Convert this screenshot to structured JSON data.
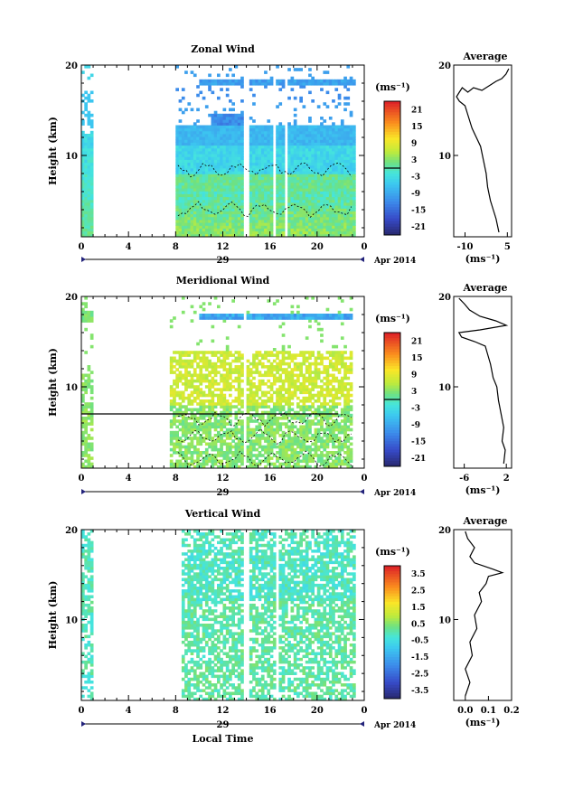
{
  "chart_data": [
    {
      "type": "heatmap",
      "title": "Zonal Wind",
      "ylabel": "Height (km)",
      "xlabel": "",
      "xlim": [
        0,
        24
      ],
      "ylim": [
        1,
        20
      ],
      "x_ticks": [
        "0",
        "4",
        "8",
        "12",
        "16",
        "20",
        "0"
      ],
      "y_ticks": [
        "10",
        "20"
      ],
      "date_label": "29",
      "date_suffix": "Apr 2014",
      "colorbar": {
        "unit": "(ms⁻¹)",
        "range": [
          -24,
          24
        ],
        "ticks": [
          "21",
          "15",
          "9",
          "3",
          "-3",
          "-9",
          "-15",
          "-21"
        ]
      },
      "profile": {
        "title": "Average",
        "xlabel": "(ms⁻¹)",
        "x_ticks": [
          "-10",
          "5"
        ],
        "y_ticks": [
          "10",
          "20"
        ],
        "xlim": [
          -14,
          6.5
        ],
        "points": [
          {
            "x": 2,
            "y": 1.5
          },
          {
            "x": 1,
            "y": 3
          },
          {
            "x": 0,
            "y": 4
          },
          {
            "x": -1,
            "y": 5
          },
          {
            "x": -2,
            "y": 6.5
          },
          {
            "x": -2.5,
            "y": 8
          },
          {
            "x": -3.5,
            "y": 9.5
          },
          {
            "x": -4.5,
            "y": 11
          },
          {
            "x": -6,
            "y": 12
          },
          {
            "x": -7.5,
            "y": 13
          },
          {
            "x": -8,
            "y": 13.5
          },
          {
            "x": -9,
            "y": 14.5
          },
          {
            "x": -10,
            "y": 15.5
          },
          {
            "x": -12,
            "y": 16
          },
          {
            "x": -13,
            "y": 16.5
          },
          {
            "x": -12,
            "y": 17
          },
          {
            "x": -11,
            "y": 17.5
          },
          {
            "x": -9,
            "y": 17
          },
          {
            "x": -7,
            "y": 17.5
          },
          {
            "x": -4,
            "y": 17.2
          },
          {
            "x": -1,
            "y": 17.8
          },
          {
            "x": 1,
            "y": 18.2
          },
          {
            "x": 3,
            "y": 18.5
          },
          {
            "x": 4.5,
            "y": 19
          },
          {
            "x": 5.5,
            "y": 19.6
          }
        ]
      }
    },
    {
      "type": "heatmap",
      "title": "Meridional Wind",
      "ylabel": "Height (km)",
      "xlabel": "",
      "xlim": [
        0,
        24
      ],
      "ylim": [
        1,
        20
      ],
      "x_ticks": [
        "0",
        "4",
        "8",
        "12",
        "16",
        "20",
        "0"
      ],
      "y_ticks": [
        "10",
        "20"
      ],
      "date_label": "29",
      "date_suffix": "Apr 2014",
      "colorbar": {
        "unit": "(ms⁻¹)",
        "range": [
          -24,
          24
        ],
        "ticks": [
          "21",
          "15",
          "9",
          "3",
          "-3",
          "-9",
          "-15",
          "-21"
        ]
      },
      "profile": {
        "title": "Average",
        "xlabel": "(ms⁻¹)",
        "x_ticks": [
          "-6",
          "2"
        ],
        "y_ticks": [
          "10",
          "20"
        ],
        "xlim": [
          -8,
          3
        ],
        "points": [
          {
            "x": 1.5,
            "y": 1.5
          },
          {
            "x": 1.8,
            "y": 3
          },
          {
            "x": 1.2,
            "y": 4
          },
          {
            "x": 1.5,
            "y": 5.5
          },
          {
            "x": 1.0,
            "y": 7
          },
          {
            "x": 0.5,
            "y": 8.5
          },
          {
            "x": 0.2,
            "y": 10
          },
          {
            "x": -0.5,
            "y": 11
          },
          {
            "x": -1,
            "y": 12.5
          },
          {
            "x": -1.5,
            "y": 13.5
          },
          {
            "x": -2,
            "y": 14.5
          },
          {
            "x": -4,
            "y": 15
          },
          {
            "x": -6.5,
            "y": 15.5
          },
          {
            "x": -7,
            "y": 16
          },
          {
            "x": -3,
            "y": 16.3
          },
          {
            "x": 2,
            "y": 16.8
          },
          {
            "x": 0,
            "y": 17.3
          },
          {
            "x": -3,
            "y": 17.8
          },
          {
            "x": -5,
            "y": 18.5
          },
          {
            "x": -6,
            "y": 19.2
          },
          {
            "x": -7,
            "y": 19.8
          }
        ]
      }
    },
    {
      "type": "heatmap",
      "title": "Vertical Wind",
      "ylabel": "Height (km)",
      "xlabel": "Local Time",
      "xlim": [
        0,
        24
      ],
      "ylim": [
        1,
        20
      ],
      "x_ticks": [
        "0",
        "4",
        "8",
        "12",
        "16",
        "20",
        "0"
      ],
      "y_ticks": [
        "10",
        "20"
      ],
      "date_label": "29",
      "date_suffix": "Apr 2014",
      "colorbar": {
        "unit": "(ms⁻¹)",
        "range": [
          -4,
          4
        ],
        "ticks": [
          "3.5",
          "2.5",
          "1.5",
          "0.5",
          "-0.5",
          "-1.5",
          "-2.5",
          "-3.5"
        ]
      },
      "profile": {
        "title": "Average",
        "xlabel": "(ms⁻¹)",
        "x_ticks": [
          "0.0",
          "0.1",
          "0.2"
        ],
        "y_ticks": [
          "10",
          "20"
        ],
        "xlim": [
          -0.05,
          0.2
        ],
        "points": [
          {
            "x": 0.0,
            "y": 1.5
          },
          {
            "x": 0.02,
            "y": 3
          },
          {
            "x": 0.0,
            "y": 4.5
          },
          {
            "x": 0.03,
            "y": 6
          },
          {
            "x": 0.02,
            "y": 7.5
          },
          {
            "x": 0.05,
            "y": 9
          },
          {
            "x": 0.04,
            "y": 10.5
          },
          {
            "x": 0.07,
            "y": 12
          },
          {
            "x": 0.06,
            "y": 13
          },
          {
            "x": 0.09,
            "y": 14
          },
          {
            "x": 0.1,
            "y": 14.8
          },
          {
            "x": 0.16,
            "y": 15.2
          },
          {
            "x": 0.12,
            "y": 15.6
          },
          {
            "x": 0.04,
            "y": 16.3
          },
          {
            "x": 0.02,
            "y": 17
          },
          {
            "x": 0.04,
            "y": 18
          },
          {
            "x": 0.01,
            "y": 19
          },
          {
            "x": 0.0,
            "y": 19.8
          }
        ]
      }
    }
  ]
}
